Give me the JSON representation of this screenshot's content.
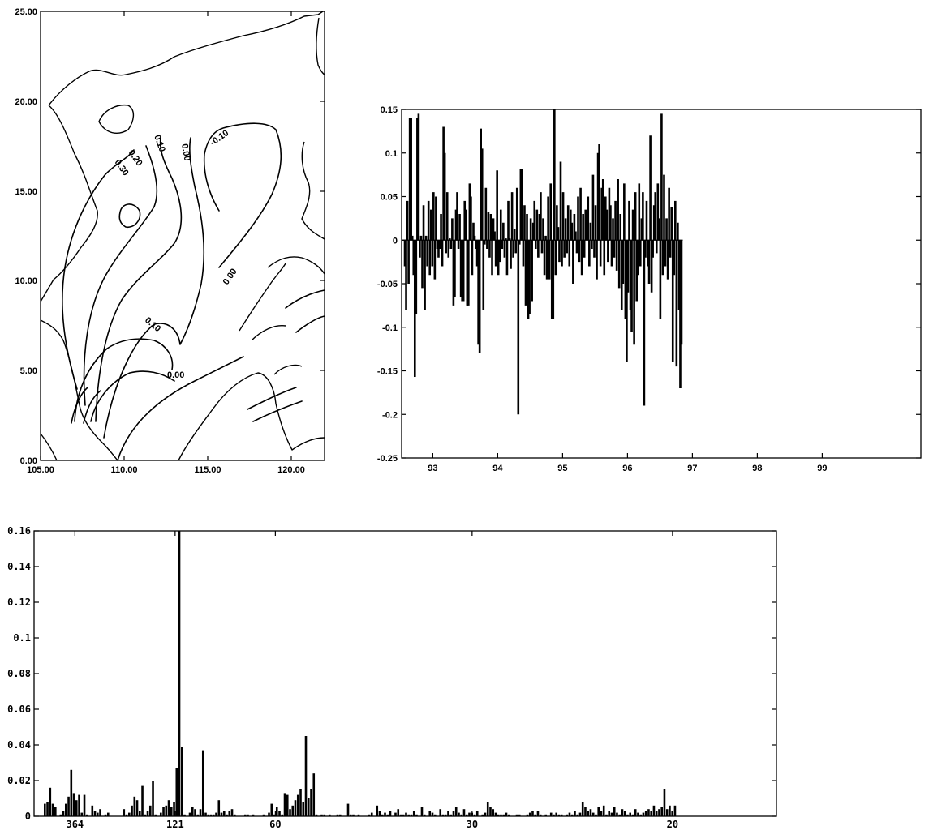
{
  "chart_data": [
    {
      "type": "contour",
      "title": "",
      "xlabel": "",
      "ylabel": "",
      "x_ticks": [
        "105.00",
        "110.00",
        "115.00",
        "120.00"
      ],
      "y_ticks": [
        "0.00",
        "5.00",
        "10.00",
        "15.00",
        "20.00",
        "25.00"
      ],
      "xlim": [
        105,
        122
      ],
      "ylim": [
        0,
        25
      ],
      "contour_labels": [
        "0.30",
        "0.20",
        "0.10",
        "0.00",
        "-0.10",
        "0.00",
        "0.10",
        "0.00"
      ]
    },
    {
      "type": "bar",
      "title": "",
      "xlabel": "",
      "ylabel": "",
      "x_ticks": [
        "93",
        "94",
        "95",
        "96",
        "97",
        "98",
        "99"
      ],
      "y_ticks": [
        "0.15",
        "0.1",
        "0.05",
        "0",
        "-0.05",
        "-0.1",
        "-0.15",
        "-0.2",
        "-0.25"
      ],
      "ylim": [
        -0.25,
        0.15
      ],
      "xlim": [
        92.6,
        100.6
      ],
      "x_start": 92.65,
      "x_step": 0.0192,
      "values": [
        -0.03,
        -0.08,
        0.045,
        -0.05,
        0.14,
        0.14,
        0.005,
        -0.04,
        -0.157,
        -0.085,
        0.14,
        0.145,
        -0.02,
        0.005,
        -0.055,
        0.04,
        -0.08,
        0.005,
        -0.03,
        0.045,
        -0.04,
        0.035,
        -0.03,
        0.055,
        -0.045,
        0.05,
        -0.01,
        -0.02,
        -0.01,
        0.03,
        -0.03,
        0.13,
        0.1,
        -0.015,
        0.055,
        -0.02,
        0.002,
        -0.01,
        0.025,
        -0.075,
        -0.065,
        0.035,
        0.055,
        -0.01,
        0.03,
        -0.065,
        -0.07,
        -0.07,
        0.045,
        0.035,
        -0.075,
        -0.075,
        0.065,
        0.05,
        -0.04,
        0.02,
        0.005,
        -0.01,
        -0.03,
        -0.12,
        -0.13,
        0.128,
        0.105,
        -0.08,
        -0.005,
        0.06,
        -0.01,
        0.032,
        -0.02,
        0.03,
        -0.04,
        0.025,
        0.01,
        -0.03,
        0.08,
        -0.04,
        -0.025,
        0.035,
        -0.01,
        0.02,
        -0.02,
        0.002,
        -0.04,
        0.045,
        0.002,
        -0.033,
        0.055,
        -0.02,
        0.013,
        -0.015,
        0.06,
        -0.2,
        -0.005,
        0.082,
        0.082,
        -0.03,
        0.04,
        -0.075,
        0.03,
        -0.09,
        -0.085,
        0.025,
        -0.07,
        0.02,
        0.045,
        -0.01,
        0.035,
        -0.02,
        0.03,
        0.055,
        -0.015,
        0.025,
        -0.04,
        0.005,
        -0.045,
        0.05,
        -0.045,
        0.065,
        -0.09,
        -0.09,
        0.15,
        -0.04,
        0.04,
        0.015,
        -0.025,
        0.09,
        -0.03,
        0.055,
        -0.02,
        0.025,
        -0.015,
        0.04,
        -0.03,
        0.035,
        0.02,
        -0.05,
        0.03,
        0.01,
        -0.015,
        0.05,
        -0.025,
        0.06,
        -0.04,
        0.03,
        -0.02,
        0.035,
        0.015,
        0.05,
        -0.03,
        0.02,
        -0.01,
        0.075,
        -0.02,
        0.04,
        -0.045,
        0.1,
        0.11,
        -0.03,
        0.06,
        0.07,
        -0.04,
        0.05,
        0.035,
        -0.025,
        0.06,
        0.04,
        -0.03,
        0.025,
        -0.02,
        0.045,
        -0.035,
        0.07,
        -0.055,
        0.03,
        -0.08,
        -0.05,
        0.065,
        -0.09,
        -0.14,
        -0.06,
        0.045,
        -0.08,
        -0.105,
        0.035,
        -0.12,
        0.055,
        -0.07,
        -0.04,
        0.065,
        -0.03,
        0.025,
        0.055,
        -0.19,
        -0.02,
        0.045,
        -0.03,
        -0.05,
        0.12,
        -0.06,
        -0.02,
        0.04,
        0.055,
        -0.015,
        0.065,
        0.025,
        -0.09,
        0.145,
        -0.04,
        0.075,
        -0.03,
        0.025,
        -0.045,
        0.06,
        -0.02,
        0.038,
        -0.14,
        -0.04,
        0.045,
        -0.145,
        0.02,
        -0.08,
        -0.17,
        -0.12
      ]
    },
    {
      "type": "bar",
      "title": "",
      "xlabel": "",
      "ylabel": "",
      "x_ticks": [
        "364",
        "121",
        "60",
        "30",
        "20"
      ],
      "x_tick_positions": [
        0.055,
        0.19,
        0.325,
        0.59,
        0.86
      ],
      "y_ticks": [
        "0.16",
        "0.14",
        "0.12",
        "0.1",
        "0.08",
        "0.06",
        "0.04",
        "0.02",
        "0"
      ],
      "ylim": [
        0,
        0.16
      ],
      "values": [
        0.007,
        0.008,
        0.016,
        0.007,
        0.005,
        0,
        0.001,
        0.003,
        0.007,
        0.011,
        0.026,
        0.013,
        0.009,
        0.012,
        0.002,
        0.012,
        0.001,
        0,
        0.006,
        0.003,
        0.002,
        0.004,
        0,
        0.001,
        0.002,
        0,
        0,
        0,
        0,
        0,
        0.004,
        0.001,
        0.002,
        0.006,
        0.011,
        0.009,
        0.003,
        0.017,
        0.001,
        0.003,
        0.006,
        0.02,
        0.001,
        0,
        0.002,
        0.005,
        0.006,
        0.009,
        0.005,
        0.008,
        0.027,
        0.16,
        0.039,
        0.001,
        0,
        0.002,
        0.005,
        0.004,
        0.001,
        0.004,
        0.037,
        0.002,
        0.001,
        0.001,
        0.001,
        0.002,
        0.009,
        0.002,
        0.003,
        0.001,
        0.003,
        0.004,
        0.001,
        0,
        0,
        0,
        0.001,
        0.001,
        0,
        0.001,
        0,
        0,
        0,
        0.001,
        0,
        0.002,
        0.007,
        0.001,
        0.005,
        0.003,
        0.001,
        0.013,
        0.012,
        0.004,
        0.006,
        0.009,
        0.012,
        0.015,
        0.008,
        0.045,
        0.01,
        0.015,
        0.024,
        0.001,
        0,
        0.001,
        0.001,
        0,
        0.001,
        0,
        0,
        0.001,
        0.001,
        0,
        0,
        0.007,
        0.001,
        0.001,
        0,
        0.001,
        0,
        0,
        0,
        0.001,
        0.002,
        0,
        0.006,
        0.003,
        0.001,
        0.002,
        0.001,
        0.003,
        0,
        0.002,
        0.004,
        0.001,
        0.001,
        0.002,
        0.001,
        0.001,
        0.003,
        0.001,
        0,
        0.005,
        0.001,
        0,
        0.003,
        0.002,
        0.001,
        0,
        0.004,
        0.001,
        0.001,
        0.003,
        0.001,
        0.003,
        0.005,
        0.002,
        0.001,
        0.004,
        0.001,
        0.002,
        0.002,
        0.001,
        0.003,
        0,
        0.001,
        0.002,
        0.008,
        0.005,
        0.004,
        0.002,
        0.001,
        0.001,
        0.001,
        0.002,
        0.001,
        0,
        0,
        0.001,
        0.001,
        0,
        0,
        0.001,
        0.002,
        0.003,
        0.001,
        0.003,
        0.001,
        0,
        0.001,
        0,
        0.002,
        0.001,
        0.002,
        0.001,
        0.001,
        0,
        0.001,
        0.002,
        0.001,
        0.003,
        0.001,
        0.002,
        0.008,
        0.005,
        0.003,
        0.004,
        0.002,
        0.001,
        0.005,
        0.003,
        0.006,
        0.001,
        0.003,
        0.002,
        0.005,
        0.002,
        0.001,
        0.004,
        0.003,
        0.001,
        0.002,
        0.001,
        0.004,
        0.002,
        0.001,
        0.002,
        0.003,
        0.004,
        0.003,
        0.006,
        0.003,
        0.004,
        0.005,
        0.015,
        0.004,
        0.006,
        0.003,
        0.006
      ]
    }
  ]
}
